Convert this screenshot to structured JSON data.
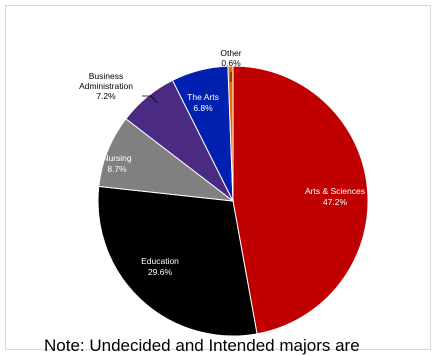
{
  "chart_data": {
    "type": "pie",
    "title": "",
    "categories": [
      "Arts & Sciences",
      "Education",
      "Nursing",
      "Business Administration",
      "The Arts",
      "Other"
    ],
    "values": [
      47.2,
      29.6,
      8.7,
      7.2,
      6.8,
      0.6
    ],
    "value_labels": [
      "47.2%",
      "29.6%",
      "8.7%",
      "7.2%",
      "6.8%",
      "0.6%"
    ],
    "colors": [
      "#c00000",
      "#000000",
      "#808080",
      "#4b2a84",
      "#0020b0",
      "#e46c0a"
    ],
    "label_lines": [
      [
        "Arts & Sciences"
      ],
      [
        "Education"
      ],
      [
        "Nursing"
      ],
      [
        "Business",
        "Administration"
      ],
      [
        "The Arts"
      ],
      [
        "Other"
      ]
    ],
    "label_colors": [
      "#ffffff",
      "#ffffff",
      "#ffffff",
      "#000000",
      "#ffffff",
      "#000000"
    ],
    "legend": "none"
  },
  "note": "Note: Undecided and Intended majors are"
}
